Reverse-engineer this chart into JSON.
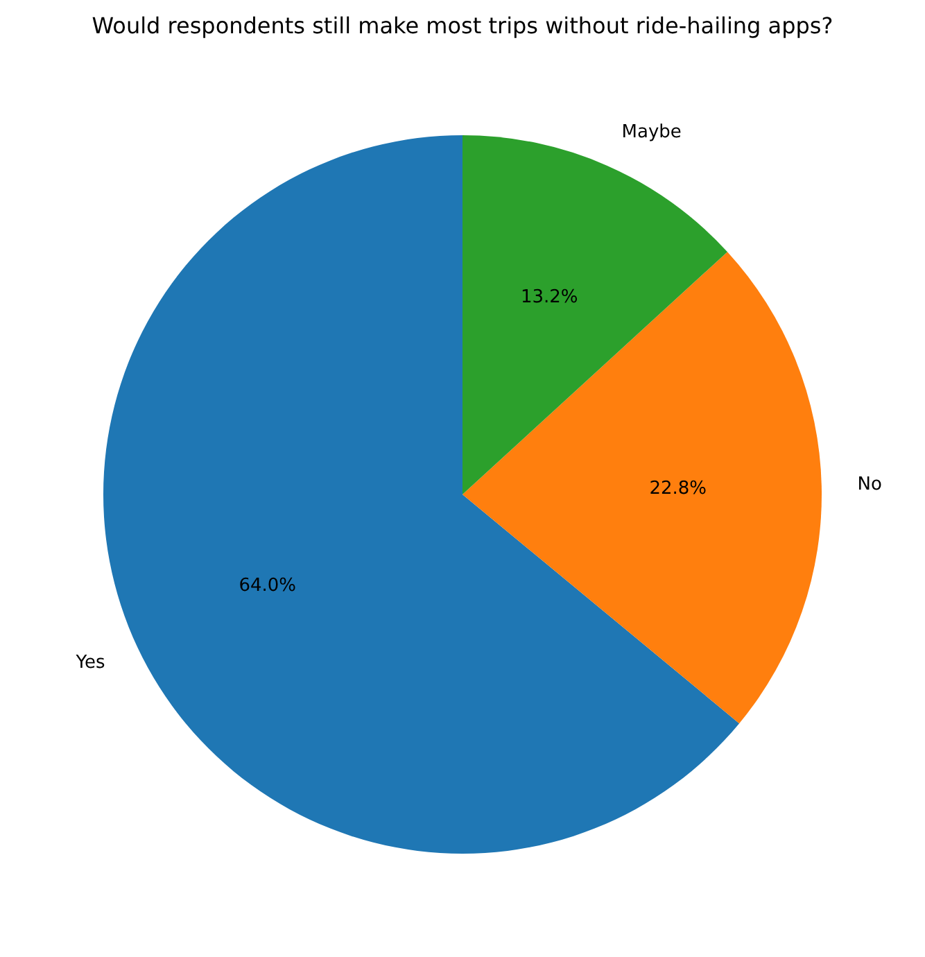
{
  "chart_data": {
    "type": "pie",
    "title": "Would respondents still make most trips without ride-hailing apps?",
    "categories": [
      "Yes",
      "No",
      "Maybe"
    ],
    "values": [
      64.0,
      22.8,
      13.2
    ],
    "colors": [
      "#1f77b4",
      "#ff7f0e",
      "#2ca02c"
    ],
    "value_labels": [
      "64.0%",
      "22.8%",
      "13.2%"
    ]
  }
}
